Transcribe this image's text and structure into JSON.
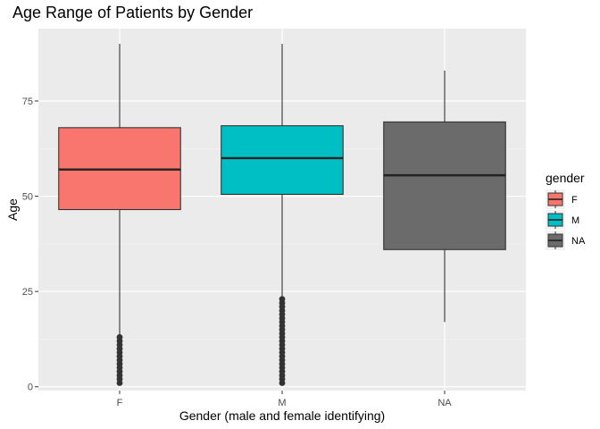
{
  "chart_data": {
    "type": "boxplot",
    "title": "Age Range of Patients by Gender",
    "xlabel": "Gender (male and female identifying)",
    "ylabel": "Age",
    "ylim": [
      -1,
      94
    ],
    "yticks": [
      0,
      25,
      50,
      75
    ],
    "grid": true,
    "legend": {
      "title": "gender",
      "position": "right"
    },
    "groups": [
      {
        "label": "F",
        "color": "#F8766D",
        "whisker_low": 1,
        "q1": 46.5,
        "median": 57,
        "q3": 68,
        "whisker_high": 90,
        "outliers": [
          1,
          2,
          3,
          4,
          5,
          6,
          7,
          8,
          9,
          10,
          11,
          12,
          13
        ]
      },
      {
        "label": "M",
        "color": "#00BFC4",
        "whisker_low": 1,
        "q1": 50.5,
        "median": 60,
        "q3": 68.5,
        "whisker_high": 90,
        "outliers": [
          1,
          2,
          3,
          4,
          5,
          6,
          7,
          8,
          9,
          10,
          11,
          12,
          13,
          14,
          15,
          16,
          17,
          18,
          19,
          20,
          21,
          22,
          23
        ]
      },
      {
        "label": "NA",
        "color": "#6B6B6B",
        "whisker_low": 17,
        "q1": 36,
        "median": 55.5,
        "q3": 69.5,
        "whisker_high": 83,
        "outliers": []
      }
    ]
  }
}
